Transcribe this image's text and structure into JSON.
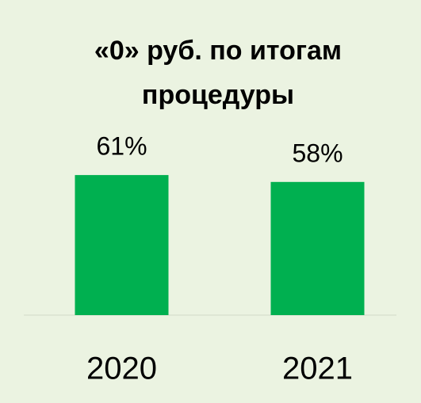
{
  "chart_data": {
    "type": "bar",
    "title": "«0» руб. по итогам процедуры",
    "categories": [
      "2020",
      "2021"
    ],
    "values": [
      61,
      58
    ],
    "value_labels": [
      "61%",
      "58%"
    ],
    "color": "#00b050"
  }
}
